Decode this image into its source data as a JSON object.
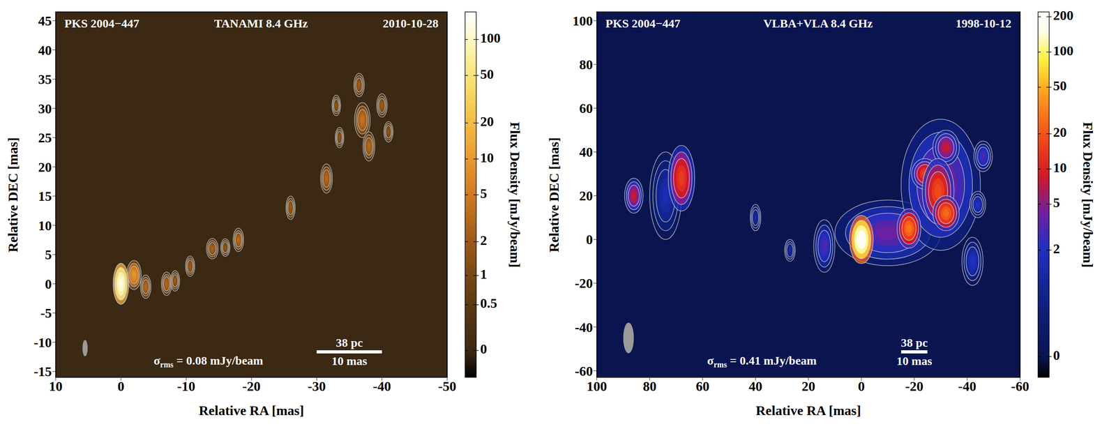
{
  "chart_data": [
    {
      "type": "map",
      "source": "PKS 2004−447",
      "title": "TANAMI 8.4 GHz",
      "date": "2010-10-28",
      "x_label": "Relative RA [mas]",
      "y_label": "Relative DEC [mas]",
      "xlim": [
        10,
        -50
      ],
      "xticks": [
        10,
        0,
        -10,
        -20,
        -30,
        -40,
        -50
      ],
      "ylim": [
        -16,
        46.5
      ],
      "yticks": [
        -15,
        -10,
        -5,
        0,
        5,
        10,
        15,
        20,
        25,
        30,
        35,
        40,
        45
      ],
      "colorbar": {
        "label": "Flux Density [mJy/beam]",
        "range": [
          -0.27,
          170
        ],
        "ticks": [
          0,
          0.5,
          1,
          2,
          5,
          10,
          20,
          50,
          100
        ]
      },
      "noise": {
        "symbol": "σ",
        "subscript": "rms",
        "text": "= 0.08 mJy/beam"
      },
      "scale_bar": {
        "value": 10,
        "label": "10 mas",
        "physical": "38 pc"
      },
      "beam": {
        "x": 5.5,
        "y": -11,
        "width": 0.8,
        "height": 2.8
      },
      "components": {
        "x": [
          -2,
          -3.8,
          -7,
          -8.3,
          -10.6,
          -14,
          -16,
          -18,
          -26,
          -31.5,
          -33,
          -33.5,
          -36.5,
          -37,
          -38,
          -40,
          -41,
          0
        ],
        "y": [
          1.5,
          -0.5,
          0,
          0.5,
          3,
          6,
          6.2,
          7.5,
          13,
          18,
          30.5,
          25,
          34,
          28,
          23.5,
          30.5,
          26,
          0
        ],
        "flux": [
          9,
          3,
          3,
          2,
          2,
          2.5,
          1.5,
          3,
          2,
          3,
          1.5,
          1.5,
          2,
          4,
          3,
          2,
          1.5,
          130
        ],
        "width": [
          2.2,
          1.6,
          1.6,
          1.4,
          1.4,
          1.8,
          1.4,
          1.6,
          1.4,
          1.8,
          1.3,
          1.3,
          1.6,
          2.4,
          1.8,
          1.6,
          1.4,
          2.4
        ],
        "height": [
          5,
          4,
          4,
          3.5,
          3.5,
          3.5,
          3,
          4,
          4,
          5,
          3.5,
          3.5,
          4,
          6,
          5,
          4,
          3.5,
          7
        ]
      }
    },
    {
      "type": "map",
      "source": "PKS 2004−447",
      "title": "VLBA+VLA 8.4 GHz",
      "date": "1998-10-12",
      "x_label": "Relative RA [mas]",
      "y_label": "Relative DEC [mas]",
      "xlim": [
        100,
        -60
      ],
      "xticks": [
        100,
        80,
        60,
        40,
        20,
        0,
        -20,
        -40,
        -60
      ],
      "ylim": [
        -63,
        104
      ],
      "yticks": [
        -60,
        -40,
        -20,
        0,
        20,
        40,
        60,
        80,
        100
      ],
      "colorbar": {
        "label": "Flux Density [mJy/beam]",
        "range": [
          -0.21,
          220
        ],
        "ticks": [
          0,
          2,
          5,
          10,
          20,
          50,
          100,
          200
        ]
      },
      "noise": {
        "symbol": "σ",
        "subscript": "rms",
        "text": "= 0.41 mJy/beam"
      },
      "scale_bar": {
        "value": 10,
        "label": "10 mas",
        "physical": "38 pc"
      },
      "beam": {
        "x": 88,
        "y": -45,
        "width": 4,
        "height": 14
      },
      "components": {
        "x": [
          -10,
          -30,
          74,
          40,
          27,
          -42,
          -44,
          -46,
          14,
          86,
          68,
          -32,
          -24,
          -29,
          -32,
          -18,
          0
        ],
        "y": [
          3,
          25,
          20,
          10,
          -5,
          -10,
          16,
          38,
          -3,
          20,
          28,
          42,
          30,
          22,
          12,
          5,
          0
        ],
        "flux": [
          4,
          5,
          1.5,
          1.2,
          1.2,
          2,
          2,
          3,
          3,
          8,
          15,
          8,
          15,
          18,
          25,
          28,
          200
        ],
        "width": [
          40,
          30,
          12,
          4,
          4,
          8,
          6,
          7,
          8,
          7,
          10,
          10,
          10,
          12,
          10,
          9,
          9
        ],
        "height": [
          30,
          60,
          40,
          12,
          10,
          22,
          12,
          14,
          24,
          16,
          30,
          16,
          14,
          30,
          16,
          18,
          22
        ]
      }
    }
  ]
}
